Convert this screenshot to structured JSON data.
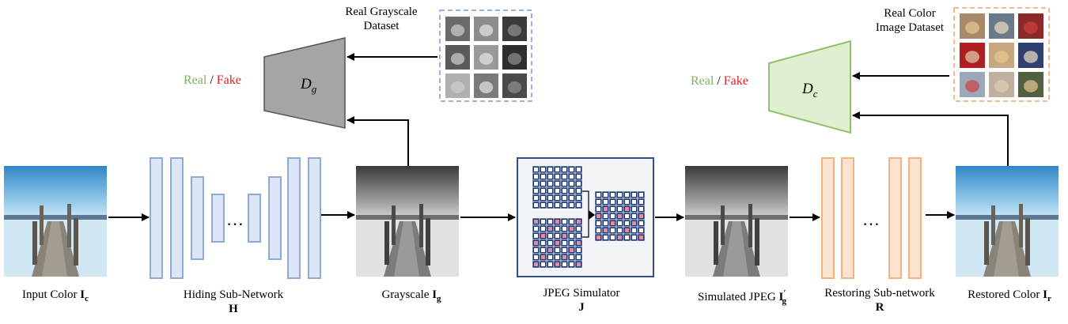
{
  "labels": {
    "input": {
      "text": "Input Color ",
      "sym": "I",
      "sub": "c"
    },
    "hiding": {
      "text": "Hiding Sub-Network",
      "sym": "H"
    },
    "gray": {
      "text": "Grayscale ",
      "sym": "I",
      "sub": "g"
    },
    "jpeg": {
      "text": "JPEG Simulator",
      "sym": "J"
    },
    "simjpeg": {
      "text": "Simulated JPEG ",
      "sym": "I",
      "sub": "g",
      "sup": "′"
    },
    "restoring": {
      "text": "Restoring Sub-network",
      "sym": "R"
    },
    "restored": {
      "text": "Restored Color ",
      "sym": "I",
      "sub": "r"
    }
  },
  "discriminators": {
    "gray": {
      "sym": "D",
      "sub": "g",
      "real": "Real",
      "sep": " / ",
      "fake": "Fake"
    },
    "color": {
      "sym": "D",
      "sub": "c",
      "real": "Real",
      "sep": " / ",
      "fake": "Fake"
    }
  },
  "datasets": {
    "gray": {
      "line1": "Real Grayscale",
      "line2": "Dataset"
    },
    "color": {
      "line1": "Real Color",
      "line2": "Image Dataset"
    }
  },
  "ellipsis": "…",
  "colors": {
    "real": "#7fb060",
    "fake": "#e02020",
    "hiding_block_fill": "#dce6f5",
    "hiding_block_stroke": "#8eaadb",
    "restoring_block_fill": "#fde4d0",
    "restoring_block_stroke": "#f4b183",
    "dg_fill": "#a5a5a5",
    "dc_fill": "#dff0d0",
    "dc_stroke": "#8fc06a",
    "jpeg_border": "#2f4f8f",
    "gray_dataset_border": "#8eaadb",
    "color_dataset_border": "#f4b183"
  }
}
